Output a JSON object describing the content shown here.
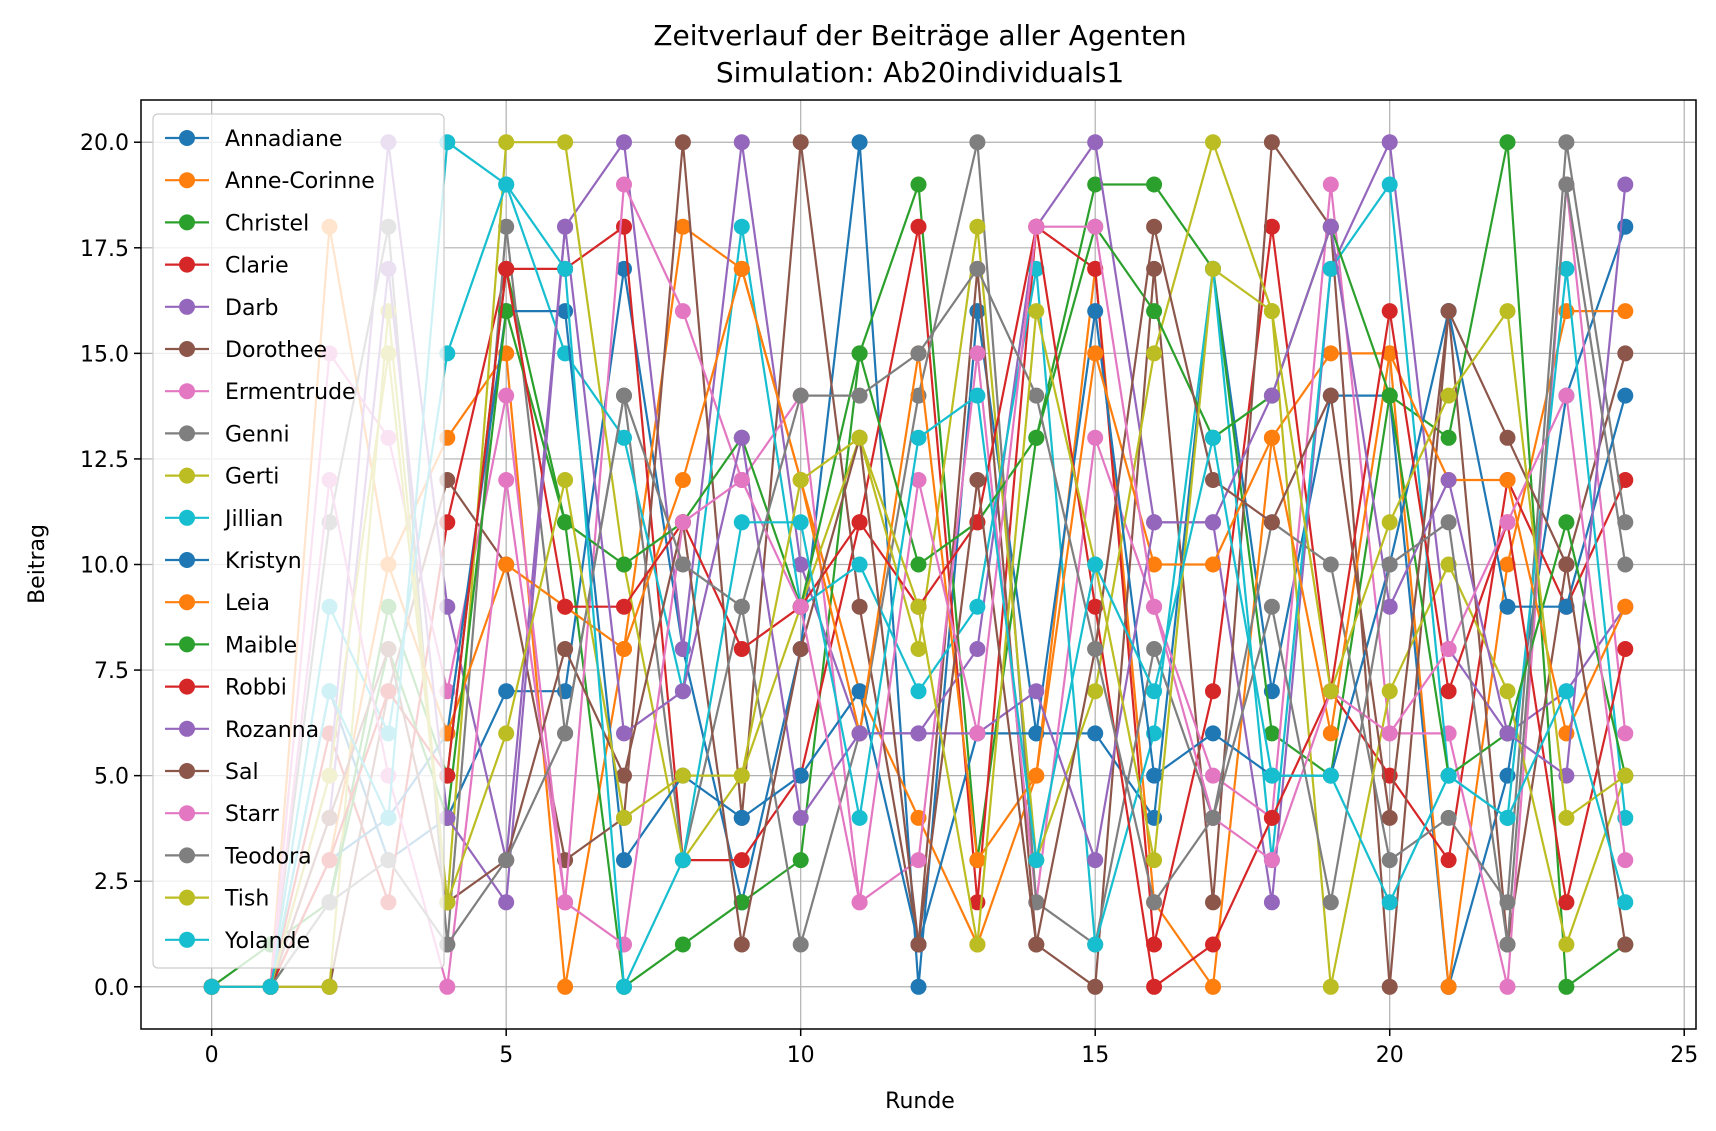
{
  "chart_data": {
    "type": "line",
    "title": "Zeitverlauf der Beiträge aller Agenten",
    "subtitle": "Simulation: Ab20individuals1",
    "xlabel": "Runde",
    "ylabel": "Beitrag",
    "xlim": [
      -1.2,
      25.2
    ],
    "ylim": [
      -1.0,
      21.0
    ],
    "xticks": [
      0,
      5,
      10,
      15,
      20,
      25
    ],
    "yticks": [
      0.0,
      2.5,
      5.0,
      7.5,
      10.0,
      12.5,
      15.0,
      17.5,
      20.0
    ],
    "grid": true,
    "legend_position": "upper-left",
    "x": [
      0,
      1,
      2,
      3,
      4,
      5,
      6,
      7,
      8,
      9,
      10,
      11,
      12,
      13,
      14,
      15,
      16,
      17,
      18,
      19,
      20,
      21,
      22,
      23,
      24
    ],
    "series": [
      {
        "name": "Annadiane",
        "color": "#1f77b4",
        "values": [
          0,
          0,
          7,
          3,
          4,
          7,
          7,
          17,
          8,
          2,
          8,
          20,
          0,
          16,
          6,
          6,
          4,
          17,
          7,
          14,
          14,
          0,
          5,
          14,
          18
        ]
      },
      {
        "name": "Anne-Corinne",
        "color": "#ff7f0e",
        "values": [
          0,
          0,
          18,
          10,
          13,
          15,
          0,
          8,
          18,
          17,
          12,
          7,
          4,
          1,
          5,
          17,
          2,
          0,
          13,
          15,
          15,
          0,
          10,
          16,
          16
        ]
      },
      {
        "name": "Christel",
        "color": "#2ca02c",
        "values": [
          0,
          1,
          2,
          9,
          5,
          17,
          11,
          0,
          1,
          2,
          3,
          15,
          19,
          3,
          13,
          19,
          19,
          17,
          6,
          5,
          14,
          13,
          20,
          0,
          1
        ]
      },
      {
        "name": "Clarie",
        "color": "#d62728",
        "values": [
          0,
          0,
          6,
          2,
          11,
          17,
          17,
          18,
          3,
          3,
          5,
          11,
          18,
          2,
          18,
          17,
          1,
          7,
          18,
          7,
          5,
          3,
          12,
          9,
          12
        ]
      },
      {
        "name": "Darb",
        "color": "#9467bd",
        "values": [
          0,
          0,
          5,
          20,
          9,
          3,
          18,
          20,
          8,
          20,
          10,
          6,
          6,
          8,
          18,
          20,
          11,
          11,
          2,
          17,
          20,
          8,
          6,
          7,
          9
        ]
      },
      {
        "name": "Dorothee",
        "color": "#8c564b",
        "values": [
          0,
          0,
          0,
          7,
          12,
          10,
          3,
          4,
          20,
          4,
          20,
          9,
          1,
          17,
          1,
          0,
          17,
          2,
          20,
          18,
          0,
          16,
          1,
          10,
          15
        ]
      },
      {
        "name": "Ermentrude",
        "color": "#e377c2",
        "values": [
          0,
          0,
          15,
          13,
          7,
          14,
          2,
          19,
          16,
          12,
          14,
          2,
          3,
          15,
          2,
          13,
          9,
          5,
          4,
          19,
          6,
          6,
          0,
          19,
          6
        ]
      },
      {
        "name": "Genni",
        "color": "#7f7f7f",
        "values": [
          0,
          0,
          11,
          18,
          1,
          18,
          6,
          14,
          3,
          9,
          1,
          6,
          14,
          20,
          2,
          1,
          8,
          4,
          11,
          10,
          3,
          4,
          2,
          20,
          11
        ]
      },
      {
        "name": "Gerti",
        "color": "#bcbd22",
        "values": [
          0,
          0,
          0,
          16,
          2,
          20,
          20,
          10,
          3,
          5,
          9,
          13,
          8,
          18,
          3,
          7,
          15,
          20,
          16,
          0,
          7,
          10,
          7,
          1,
          5
        ]
      },
      {
        "name": "Jillian",
        "color": "#17becf",
        "values": [
          0,
          0,
          9,
          6,
          15,
          19,
          15,
          13,
          7,
          18,
          9,
          10,
          7,
          9,
          17,
          1,
          6,
          17,
          3,
          17,
          19,
          5,
          4,
          17,
          4
        ]
      },
      {
        "name": "Kristyn",
        "color": "#1f77b4",
        "values": [
          0,
          0,
          3,
          4,
          6,
          16,
          16,
          3,
          5,
          4,
          5,
          7,
          1,
          6,
          6,
          16,
          5,
          6,
          5,
          5,
          10,
          16,
          9,
          9,
          14
        ]
      },
      {
        "name": "Leia",
        "color": "#ff7f0e",
        "values": [
          0,
          0,
          3,
          10,
          6,
          10,
          9,
          8,
          12,
          17,
          12,
          6,
          15,
          3,
          5,
          15,
          10,
          10,
          13,
          6,
          15,
          12,
          12,
          6,
          9
        ]
      },
      {
        "name": "Maible",
        "color": "#2ca02c",
        "values": [
          0,
          0,
          2,
          8,
          4,
          16,
          11,
          10,
          11,
          13,
          9,
          15,
          10,
          11,
          13,
          18,
          16,
          13,
          14,
          18,
          14,
          5,
          6,
          11,
          5
        ]
      },
      {
        "name": "Robbi",
        "color": "#d62728",
        "values": [
          0,
          0,
          3,
          7,
          5,
          17,
          9,
          9,
          11,
          8,
          9,
          11,
          9,
          11,
          18,
          9,
          0,
          1,
          4,
          7,
          16,
          7,
          11,
          2,
          8
        ]
      },
      {
        "name": "Rozanna",
        "color": "#9467bd",
        "values": [
          0,
          0,
          4,
          17,
          4,
          2,
          18,
          6,
          7,
          13,
          4,
          6,
          6,
          6,
          7,
          3,
          11,
          11,
          14,
          18,
          9,
          12,
          6,
          5,
          19
        ]
      },
      {
        "name": "Sal",
        "color": "#8c564b",
        "values": [
          0,
          0,
          4,
          8,
          2,
          3,
          8,
          5,
          11,
          1,
          8,
          13,
          1,
          12,
          1,
          8,
          18,
          12,
          11,
          14,
          4,
          16,
          13,
          10,
          1
        ]
      },
      {
        "name": "Starr",
        "color": "#e377c2",
        "values": [
          0,
          0,
          12,
          5,
          0,
          12,
          2,
          1,
          11,
          12,
          9,
          2,
          12,
          6,
          18,
          18,
          9,
          4,
          3,
          7,
          6,
          8,
          11,
          14,
          3
        ]
      },
      {
        "name": "Teodora",
        "color": "#7f7f7f",
        "values": [
          0,
          0,
          2,
          3,
          1,
          3,
          6,
          14,
          10,
          9,
          14,
          14,
          15,
          17,
          14,
          8,
          2,
          4,
          9,
          2,
          10,
          11,
          1,
          19,
          10
        ]
      },
      {
        "name": "Tish",
        "color": "#bcbd22",
        "values": [
          0,
          0,
          5,
          15,
          2,
          6,
          12,
          4,
          5,
          5,
          12,
          13,
          9,
          1,
          16,
          10,
          3,
          17,
          16,
          7,
          11,
          14,
          16,
          4,
          5
        ]
      },
      {
        "name": "Yolande",
        "color": "#17becf",
        "values": [
          0,
          0,
          7,
          4,
          20,
          19,
          17,
          0,
          3,
          11,
          11,
          4,
          13,
          14,
          3,
          10,
          7,
          13,
          5,
          5,
          2,
          5,
          4,
          7,
          2
        ]
      }
    ]
  }
}
